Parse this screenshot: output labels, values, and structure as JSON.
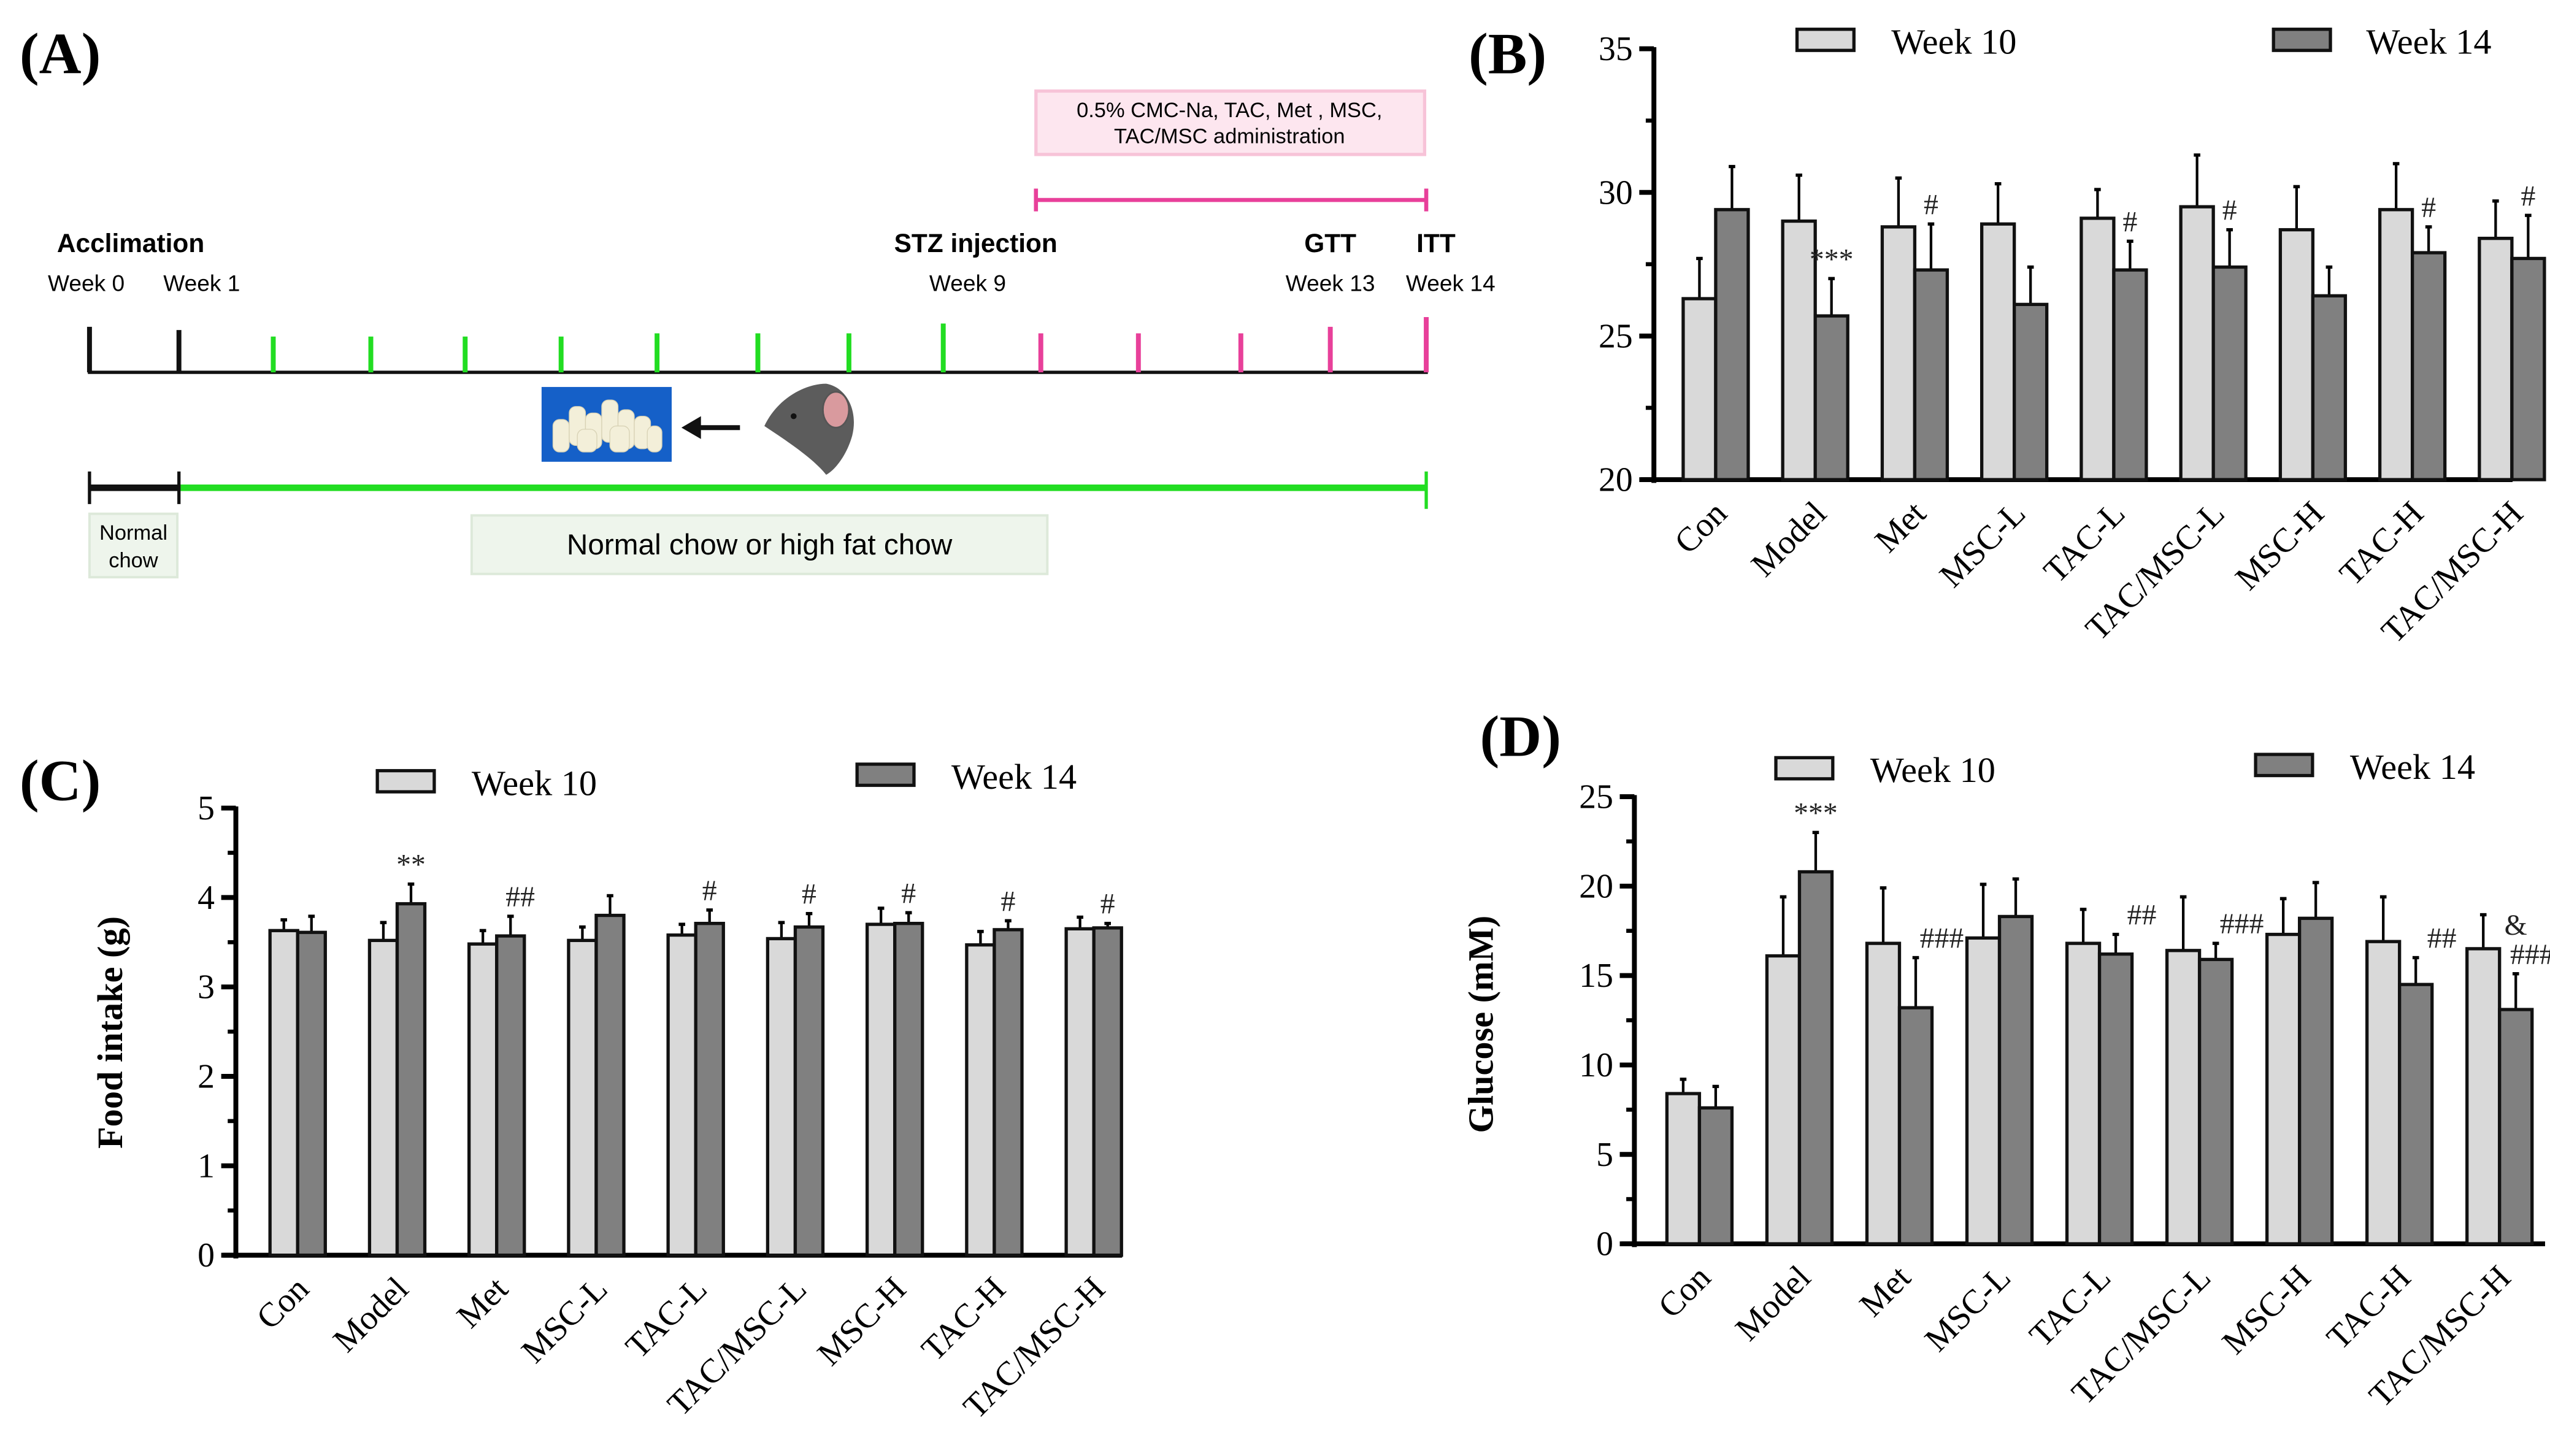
{
  "panel_labels": {
    "a": "(A)",
    "b": "(B)",
    "c": "(C)",
    "d": "(D)"
  },
  "timeline": {
    "admin_box": [
      "0.5% CMC-Na, TAC, Met , MSC,",
      "TAC/MSC administration"
    ],
    "events": {
      "acclimation": "Acclimation",
      "stz": "STZ injection",
      "gtt": "GTT",
      "itt": "ITT"
    },
    "weeks": {
      "w0": "Week 0",
      "w1": "Week 1",
      "w9": "Week 9",
      "w13": "Week 13",
      "w14": "Week 14"
    },
    "normal_chow": [
      "Normal",
      "chow"
    ],
    "diet_box": "Normal chow or high fat chow",
    "colors": {
      "green": "#22dd22",
      "pink": "#e8409a",
      "black": "#111111"
    }
  },
  "chart_data": [
    {
      "id": "B",
      "type": "bar",
      "title": "",
      "xlabel": "",
      "ylabel": "",
      "ylim": [
        20,
        35
      ],
      "yticks": [
        20,
        25,
        30,
        35
      ],
      "grid": false,
      "legend": "top",
      "categories": [
        "Con",
        "Model",
        "Met",
        "MSC-L",
        "TAC-L",
        "TAC/MSC-L",
        "MSC-H",
        "TAC-H",
        "TAC/MSC-H"
      ],
      "series": [
        {
          "name": "Week 10",
          "color": "#d9d9d9",
          "values": [
            26.3,
            29.0,
            28.8,
            28.9,
            29.1,
            29.5,
            28.7,
            29.4,
            28.4
          ],
          "errors": [
            1.4,
            1.6,
            1.7,
            1.4,
            1.0,
            1.8,
            1.5,
            1.6,
            1.3
          ]
        },
        {
          "name": "Week 14",
          "color": "#808080",
          "values": [
            29.4,
            25.7,
            27.3,
            26.1,
            27.3,
            27.4,
            26.4,
            27.9,
            27.7
          ],
          "errors": [
            1.5,
            1.3,
            1.6,
            1.3,
            1.0,
            1.3,
            1.0,
            0.9,
            1.5
          ]
        }
      ],
      "annotations": [
        "",
        "***",
        "#",
        "",
        "#",
        "#",
        "",
        "#",
        "#"
      ]
    },
    {
      "id": "C",
      "type": "bar",
      "title": "",
      "xlabel": "",
      "ylabel": "Food intake (g)",
      "ylim": [
        0,
        5
      ],
      "yticks": [
        0,
        1,
        2,
        3,
        4,
        5
      ],
      "grid": false,
      "legend": "top",
      "categories": [
        "Con",
        "Model",
        "Met",
        "MSC-L",
        "TAC-L",
        "TAC/MSC-L",
        "MSC-H",
        "TAC-H",
        "TAC/MSC-H"
      ],
      "series": [
        {
          "name": "Week 10",
          "color": "#d9d9d9",
          "values": [
            3.63,
            3.52,
            3.48,
            3.52,
            3.58,
            3.54,
            3.7,
            3.47,
            3.65
          ],
          "errors": [
            0.12,
            0.2,
            0.15,
            0.15,
            0.12,
            0.18,
            0.18,
            0.15,
            0.13
          ]
        },
        {
          "name": "Week 14",
          "color": "#808080",
          "values": [
            3.61,
            3.93,
            3.57,
            3.8,
            3.71,
            3.67,
            3.71,
            3.64,
            3.66
          ],
          "errors": [
            0.18,
            0.22,
            0.22,
            0.22,
            0.15,
            0.15,
            0.12,
            0.1,
            0.05
          ]
        }
      ],
      "annotations": [
        "",
        "**",
        "##",
        "",
        "#",
        "#",
        "#",
        "#",
        "#"
      ]
    },
    {
      "id": "D",
      "type": "bar",
      "title": "",
      "xlabel": "",
      "ylabel": "Glucose (mM)",
      "ylim": [
        0,
        25
      ],
      "yticks": [
        0,
        5,
        10,
        15,
        20,
        25
      ],
      "grid": false,
      "legend": "top",
      "categories": [
        "Con",
        "Model",
        "Met",
        "MSC-L",
        "TAC-L",
        "TAC/MSC-L",
        "MSC-H",
        "TAC-H",
        "TAC/MSC-H"
      ],
      "series": [
        {
          "name": "Week 10",
          "color": "#d9d9d9",
          "values": [
            8.4,
            16.1,
            16.8,
            17.1,
            16.8,
            16.4,
            17.3,
            16.9,
            16.5
          ],
          "errors": [
            0.8,
            3.3,
            3.1,
            3.0,
            1.9,
            3.0,
            2.0,
            2.5,
            1.9
          ]
        },
        {
          "name": "Week 14",
          "color": "#808080",
          "values": [
            7.6,
            20.8,
            13.2,
            18.3,
            16.2,
            15.9,
            18.2,
            14.5,
            13.1
          ],
          "errors": [
            1.2,
            2.2,
            2.8,
            2.1,
            1.1,
            0.9,
            2.0,
            1.5,
            2.0
          ]
        }
      ],
      "annotations": [
        "",
        "***",
        "###",
        "",
        "##",
        "###",
        "",
        "##",
        "&\n###"
      ]
    }
  ]
}
